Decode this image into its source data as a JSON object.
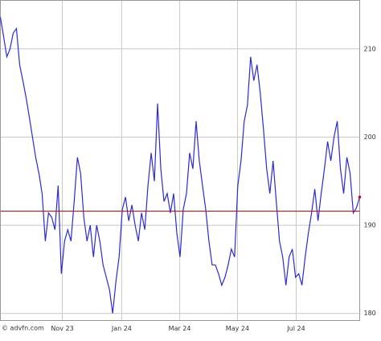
{
  "chart_data": {
    "type": "line",
    "x": [
      0,
      1,
      2,
      3,
      4,
      5,
      6,
      7,
      8,
      9,
      10,
      11,
      12,
      13,
      14,
      15,
      16,
      17,
      18,
      19,
      20,
      21,
      22,
      23,
      24,
      25,
      26,
      27,
      28,
      29,
      30,
      31,
      32,
      33,
      34,
      35,
      36,
      37,
      38,
      39,
      40,
      41,
      42,
      43,
      44,
      45,
      46,
      47,
      48,
      49,
      50,
      51,
      52,
      53,
      54,
      55,
      56,
      57,
      58,
      59,
      60,
      61,
      62,
      63,
      64,
      65,
      66,
      67,
      68,
      69,
      70,
      71,
      72,
      73,
      74,
      75,
      76,
      77,
      78,
      79,
      80,
      81,
      82,
      83,
      84,
      85,
      86,
      87,
      88,
      89,
      90,
      91,
      92,
      93,
      94,
      95,
      96,
      97,
      98,
      99,
      100,
      101,
      102,
      103,
      104,
      105,
      106,
      107,
      108,
      109,
      110,
      111,
      112
    ],
    "values": [
      213.6,
      211.4,
      209.1,
      210.0,
      211.8,
      212.3,
      208.2,
      206.4,
      204.5,
      202.3,
      200.0,
      197.7,
      195.9,
      193.6,
      188.2,
      191.4,
      190.9,
      189.5,
      194.5,
      184.5,
      188.2,
      189.5,
      188.2,
      192.7,
      197.7,
      195.9,
      190.9,
      188.2,
      190.0,
      186.4,
      190.0,
      188.2,
      185.5,
      184.1,
      182.7,
      180.0,
      183.6,
      186.4,
      191.8,
      193.2,
      190.5,
      192.3,
      190.0,
      188.2,
      191.4,
      189.5,
      194.5,
      198.2,
      195.0,
      203.8,
      196.4,
      192.7,
      193.6,
      191.4,
      193.6,
      189.1,
      186.4,
      191.8,
      193.6,
      198.2,
      196.4,
      201.8,
      197.3,
      194.5,
      191.8,
      188.2,
      185.5,
      185.5,
      184.5,
      183.2,
      184.1,
      185.5,
      187.3,
      186.4,
      194.5,
      197.3,
      201.8,
      203.6,
      209.1,
      206.4,
      208.2,
      205.0,
      200.9,
      196.4,
      193.6,
      197.3,
      192.7,
      188.2,
      186.4,
      183.2,
      186.4,
      187.3,
      184.1,
      184.5,
      183.2,
      186.4,
      189.1,
      191.4,
      194.1,
      190.5,
      193.6,
      196.4,
      199.5,
      197.3,
      200.0,
      201.8,
      196.4,
      193.6,
      197.7,
      195.9,
      191.4,
      192.0,
      193.2
    ],
    "color": "#2b2bd6",
    "xlim": [
      0,
      112
    ],
    "xticks": [
      {
        "value": 19.3,
        "label": "Nov 23"
      },
      {
        "value": 37.8,
        "label": "Jan 24"
      },
      {
        "value": 55.9,
        "label": "Mar 24"
      },
      {
        "value": 73.9,
        "label": "May 24"
      },
      {
        "value": 92.2,
        "label": "Jul 24"
      }
    ],
    "ylim": [
      179.2,
      215.5
    ],
    "yticks": [
      180,
      190,
      200,
      210
    ],
    "grid": true,
    "reference_line": {
      "value": 191.6,
      "color": "#dd0000"
    },
    "watermark": "© advfn.com"
  }
}
